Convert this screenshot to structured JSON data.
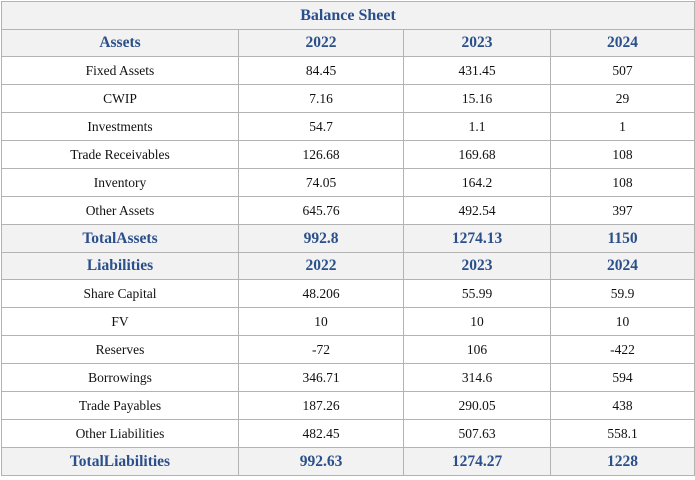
{
  "title": "Balance Sheet",
  "assets": {
    "header": [
      "Assets",
      "2022",
      "2023",
      "2024"
    ],
    "rows": [
      [
        "Fixed Assets",
        "84.45",
        "431.45",
        "507"
      ],
      [
        "CWIP",
        "7.16",
        "15.16",
        "29"
      ],
      [
        "Investments",
        "54.7",
        "1.1",
        "1"
      ],
      [
        "Trade Receivables",
        "126.68",
        "169.68",
        "108"
      ],
      [
        "Inventory",
        "74.05",
        "164.2",
        "108"
      ],
      [
        "Other Assets",
        "645.76",
        "492.54",
        "397"
      ]
    ],
    "total": [
      "TotalAssets",
      "992.8",
      "1274.13",
      "1150"
    ]
  },
  "liabilities": {
    "header": [
      "Liabilities",
      "2022",
      "2023",
      "2024"
    ],
    "rows": [
      [
        "Share Capital",
        "48.206",
        "55.99",
        "59.9"
      ],
      [
        "FV",
        "10",
        "10",
        "10"
      ],
      [
        "Reserves",
        "-72",
        "106",
        "-422"
      ],
      [
        "Borrowings",
        "346.71",
        "314.6",
        "594"
      ],
      [
        "Trade Payables",
        "187.26",
        "290.05",
        "438"
      ],
      [
        "Other Liabilities",
        "482.45",
        "507.63",
        "558.1"
      ]
    ],
    "total": [
      "TotalLiabilities",
      "992.63",
      "1274.27",
      "1228"
    ]
  },
  "colors": {
    "accent": "#2a4f8a",
    "header_bg": "#f2f2f2",
    "border": "#b3b3b3"
  }
}
